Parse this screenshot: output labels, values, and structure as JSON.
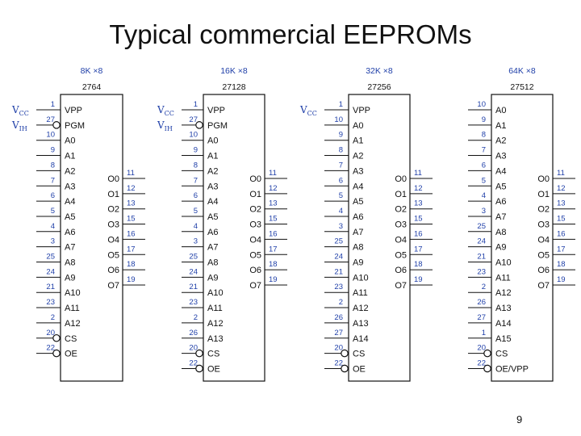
{
  "title": "Typical commercial EEPROMs",
  "page_number": "9",
  "chips": [
    {
      "capacity": "8K ×8",
      "part": "2764",
      "signals": [
        {
          "main": "V",
          "sub": "CC",
          "pin_index": 0
        },
        {
          "main": "V",
          "sub": "IH",
          "pin_index": 1
        }
      ],
      "left_pins": [
        {
          "num": "1",
          "name": "VPP"
        },
        {
          "num": "27",
          "name": "PGM",
          "active_low": true
        },
        {
          "num": "10",
          "name": "A0"
        },
        {
          "num": "9",
          "name": "A1"
        },
        {
          "num": "8",
          "name": "A2"
        },
        {
          "num": "7",
          "name": "A3"
        },
        {
          "num": "6",
          "name": "A4"
        },
        {
          "num": "5",
          "name": "A5"
        },
        {
          "num": "4",
          "name": "A6"
        },
        {
          "num": "3",
          "name": "A7"
        },
        {
          "num": "25",
          "name": "A8"
        },
        {
          "num": "24",
          "name": "A9"
        },
        {
          "num": "21",
          "name": "A10"
        },
        {
          "num": "23",
          "name": "A11"
        },
        {
          "num": "2",
          "name": "A12"
        },
        {
          "num": "20",
          "name": "CS",
          "active_low": true
        },
        {
          "num": "22",
          "name": "OE",
          "active_low": true
        }
      ],
      "right_pins": [
        {
          "num": "11",
          "name": "O0"
        },
        {
          "num": "12",
          "name": "O1"
        },
        {
          "num": "13",
          "name": "O2"
        },
        {
          "num": "15",
          "name": "O3"
        },
        {
          "num": "16",
          "name": "O4"
        },
        {
          "num": "17",
          "name": "O5"
        },
        {
          "num": "18",
          "name": "O6"
        },
        {
          "num": "19",
          "name": "O7"
        }
      ]
    },
    {
      "capacity": "16K ×8",
      "part": "27128",
      "signals": [
        {
          "main": "V",
          "sub": "CC",
          "pin_index": 0
        },
        {
          "main": "V",
          "sub": "IH",
          "pin_index": 1
        }
      ],
      "left_pins": [
        {
          "num": "1",
          "name": "VPP"
        },
        {
          "num": "27",
          "name": "PGM",
          "active_low": true
        },
        {
          "num": "10",
          "name": "A0"
        },
        {
          "num": "9",
          "name": "A1"
        },
        {
          "num": "8",
          "name": "A2"
        },
        {
          "num": "7",
          "name": "A3"
        },
        {
          "num": "6",
          "name": "A4"
        },
        {
          "num": "5",
          "name": "A5"
        },
        {
          "num": "4",
          "name": "A6"
        },
        {
          "num": "3",
          "name": "A7"
        },
        {
          "num": "25",
          "name": "A8"
        },
        {
          "num": "24",
          "name": "A9"
        },
        {
          "num": "21",
          "name": "A10"
        },
        {
          "num": "23",
          "name": "A11"
        },
        {
          "num": "2",
          "name": "A12"
        },
        {
          "num": "26",
          "name": "A13"
        },
        {
          "num": "20",
          "name": "CS",
          "active_low": true
        },
        {
          "num": "22",
          "name": "OE",
          "active_low": true
        }
      ],
      "right_pins": [
        {
          "num": "11",
          "name": "O0"
        },
        {
          "num": "12",
          "name": "O1"
        },
        {
          "num": "13",
          "name": "O2"
        },
        {
          "num": "15",
          "name": "O3"
        },
        {
          "num": "16",
          "name": "O4"
        },
        {
          "num": "17",
          "name": "O5"
        },
        {
          "num": "18",
          "name": "O6"
        },
        {
          "num": "19",
          "name": "O7"
        }
      ]
    },
    {
      "capacity": "32K ×8",
      "part": "27256",
      "signals": [
        {
          "main": "V",
          "sub": "CC",
          "pin_index": 0
        }
      ],
      "left_pins": [
        {
          "num": "1",
          "name": "VPP"
        },
        {
          "num": "10",
          "name": "A0"
        },
        {
          "num": "9",
          "name": "A1"
        },
        {
          "num": "8",
          "name": "A2"
        },
        {
          "num": "7",
          "name": "A3"
        },
        {
          "num": "6",
          "name": "A4"
        },
        {
          "num": "5",
          "name": "A5"
        },
        {
          "num": "4",
          "name": "A6"
        },
        {
          "num": "3",
          "name": "A7"
        },
        {
          "num": "25",
          "name": "A8"
        },
        {
          "num": "24",
          "name": "A9"
        },
        {
          "num": "21",
          "name": "A10"
        },
        {
          "num": "23",
          "name": "A11"
        },
        {
          "num": "2",
          "name": "A12"
        },
        {
          "num": "26",
          "name": "A13"
        },
        {
          "num": "27",
          "name": "A14"
        },
        {
          "num": "20",
          "name": "CS",
          "active_low": true
        },
        {
          "num": "22",
          "name": "OE",
          "active_low": true
        }
      ],
      "right_pins": [
        {
          "num": "11",
          "name": "O0"
        },
        {
          "num": "12",
          "name": "O1"
        },
        {
          "num": "13",
          "name": "O2"
        },
        {
          "num": "15",
          "name": "O3"
        },
        {
          "num": "16",
          "name": "O4"
        },
        {
          "num": "17",
          "name": "O5"
        },
        {
          "num": "18",
          "name": "O6"
        },
        {
          "num": "19",
          "name": "O7"
        }
      ]
    },
    {
      "capacity": "64K ×8",
      "part": "27512",
      "signals": [],
      "left_pins": [
        {
          "num": "10",
          "name": "A0"
        },
        {
          "num": "9",
          "name": "A1"
        },
        {
          "num": "8",
          "name": "A2"
        },
        {
          "num": "7",
          "name": "A3"
        },
        {
          "num": "6",
          "name": "A4"
        },
        {
          "num": "5",
          "name": "A5"
        },
        {
          "num": "4",
          "name": "A6"
        },
        {
          "num": "3",
          "name": "A7"
        },
        {
          "num": "25",
          "name": "A8"
        },
        {
          "num": "24",
          "name": "A9"
        },
        {
          "num": "21",
          "name": "A10"
        },
        {
          "num": "23",
          "name": "A11"
        },
        {
          "num": "2",
          "name": "A12"
        },
        {
          "num": "26",
          "name": "A13"
        },
        {
          "num": "27",
          "name": "A14"
        },
        {
          "num": "1",
          "name": "A15"
        },
        {
          "num": "20",
          "name": "CS",
          "active_low": true
        },
        {
          "num": "22",
          "name": "OE/VPP",
          "active_low": true
        }
      ],
      "right_pins": [
        {
          "num": "11",
          "name": "O0"
        },
        {
          "num": "12",
          "name": "O1"
        },
        {
          "num": "13",
          "name": "O2"
        },
        {
          "num": "15",
          "name": "O3"
        },
        {
          "num": "16",
          "name": "O4"
        },
        {
          "num": "17",
          "name": "O5"
        },
        {
          "num": "18",
          "name": "O6"
        },
        {
          "num": "19",
          "name": "O7"
        }
      ]
    }
  ]
}
